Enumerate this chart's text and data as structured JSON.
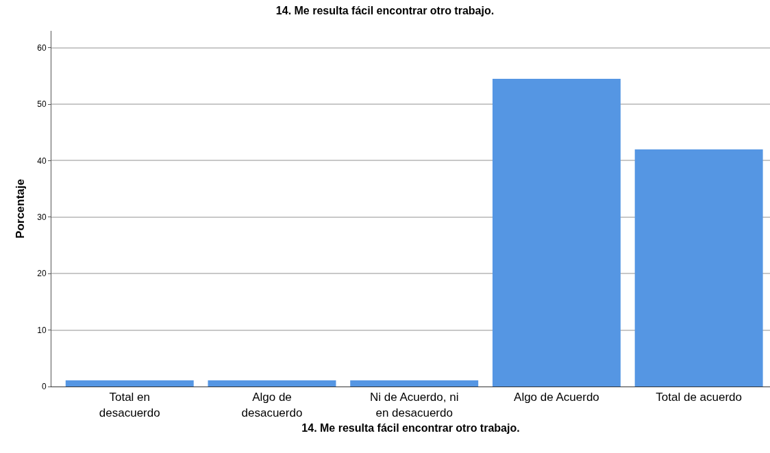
{
  "chart_data": {
    "type": "bar",
    "title": "14. Me resulta fácil encontrar otro trabajo.",
    "xlabel": "14. Me resulta fácil encontrar otro trabajo.",
    "ylabel": "Porcentaje",
    "categories": [
      "Total en\ndesacuerdo",
      "Algo de\ndesacuerdo",
      "Ni de Acuerdo, ni\nen desacuerdo",
      "Algo de Acuerdo",
      "Total de acuerdo"
    ],
    "values": [
      1.1,
      1.1,
      1.1,
      54.5,
      42.0
    ],
    "color": "#5596e3",
    "ylim": [
      0,
      63
    ],
    "yticks": [
      0,
      10,
      20,
      30,
      40,
      50,
      60
    ],
    "grid": "y"
  }
}
